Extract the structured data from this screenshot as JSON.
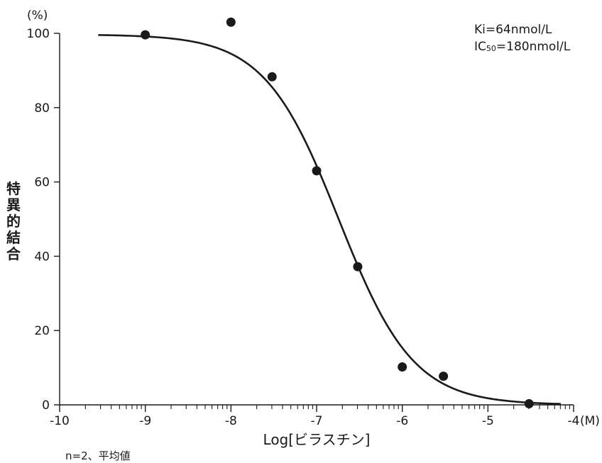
{
  "chart_data": {
    "type": "scatter",
    "title": "",
    "xlabel": "Log[ビラスチン]",
    "x_unit": "(M)",
    "ylabel": "特異的結合",
    "y_unit": "(%)",
    "xlim": [
      -10,
      -4
    ],
    "ylim": [
      0,
      100
    ],
    "x_ticks": [
      -10,
      -9,
      -8,
      -7,
      -6,
      -5,
      -4
    ],
    "x_tick_labels": [
      "-10",
      "-9",
      "-8",
      "-7",
      "-6",
      "-5",
      "-4"
    ],
    "y_ticks": [
      0,
      20,
      40,
      60,
      80,
      100
    ],
    "y_tick_labels": [
      "0",
      "20",
      "40",
      "60",
      "80",
      "100"
    ],
    "x_minor_ticks": "log",
    "grid": false,
    "series": [
      {
        "kind": "points",
        "x": [
          -9,
          -8,
          -7.52,
          -7,
          -6.52,
          -6,
          -5.52,
          -4.52
        ],
        "y": [
          99.6,
          103,
          88.3,
          63,
          37.2,
          10.2,
          7.7,
          0.3
        ]
      },
      {
        "kind": "fit_curve",
        "model": "sigmoid",
        "top": 99.7,
        "bottom": 0,
        "log_ic50": -6.74,
        "hill": 1.0,
        "x_range": [
          -9.55,
          -4.15
        ]
      }
    ],
    "annotations": {
      "ki": "Ki=64nmol/L",
      "ic50_prefix": "IC",
      "ic50_sub": "50",
      "ic50_suffix": "=180nmol/L"
    },
    "footnote": "n=2、平均値"
  }
}
